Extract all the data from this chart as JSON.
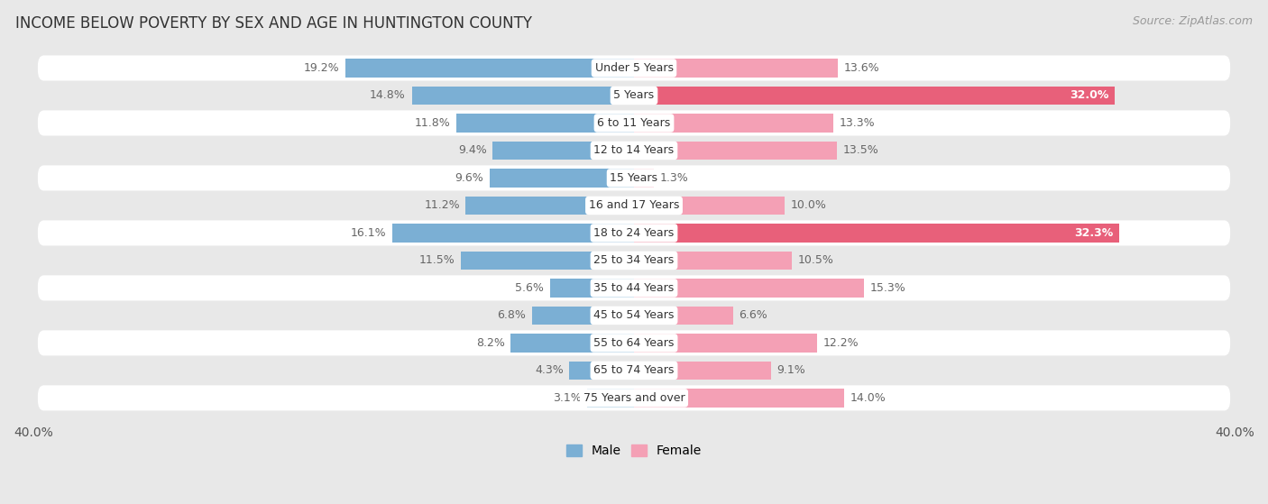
{
  "title": "INCOME BELOW POVERTY BY SEX AND AGE IN HUNTINGTON COUNTY",
  "source": "Source: ZipAtlas.com",
  "categories": [
    "Under 5 Years",
    "5 Years",
    "6 to 11 Years",
    "12 to 14 Years",
    "15 Years",
    "16 and 17 Years",
    "18 to 24 Years",
    "25 to 34 Years",
    "35 to 44 Years",
    "45 to 54 Years",
    "55 to 64 Years",
    "65 to 74 Years",
    "75 Years and over"
  ],
  "male": [
    19.2,
    14.8,
    11.8,
    9.4,
    9.6,
    11.2,
    16.1,
    11.5,
    5.6,
    6.8,
    8.2,
    4.3,
    3.1
  ],
  "female": [
    13.6,
    32.0,
    13.3,
    13.5,
    1.3,
    10.0,
    32.3,
    10.5,
    15.3,
    6.6,
    12.2,
    9.1,
    14.0
  ],
  "male_color": "#7bafd4",
  "female_color": "#f4a0b5",
  "highlight_female_color": "#e8607a",
  "highlight_male_color": "#5a9ec4",
  "male_label_color": "#666666",
  "female_label_color": "#666666",
  "female_label_highlight_color": "#ffffff",
  "highlight_female": [
    1,
    6
  ],
  "xlim": 40.0,
  "background_color": "#e8e8e8",
  "row_bg_color": "#ffffff",
  "row_alt_bg_color": "#e8e8e8",
  "title_fontsize": 12,
  "label_fontsize": 9,
  "category_fontsize": 9,
  "legend_fontsize": 10,
  "source_fontsize": 9
}
